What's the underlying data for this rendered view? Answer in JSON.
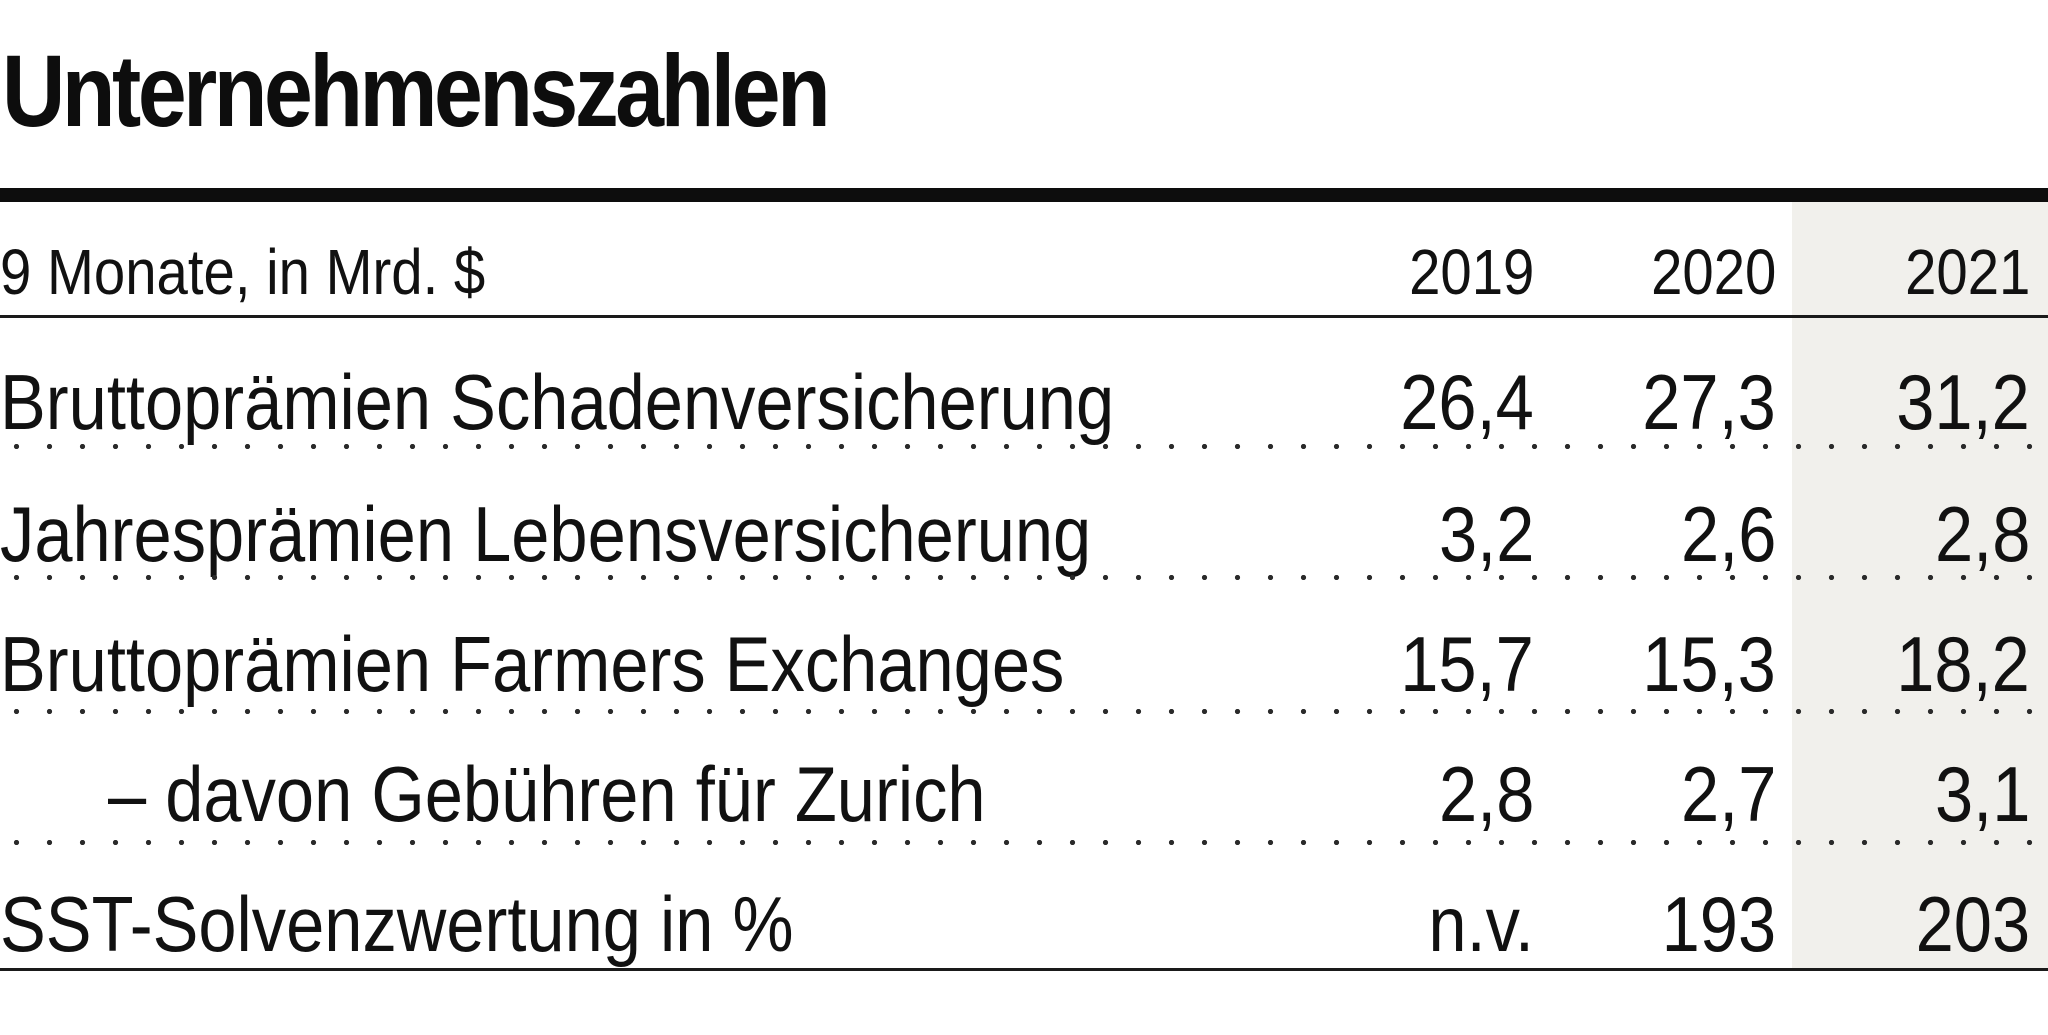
{
  "title": "Unternehmenszahlen",
  "header": {
    "unit_label": "9 Monate, in Mrd. $",
    "years": [
      "2019",
      "2020",
      "2021"
    ]
  },
  "rows": [
    {
      "label": "Bruttoprämien Schadenversicherung",
      "values": [
        "26,4",
        "27,3",
        "31,2"
      ]
    },
    {
      "label": "Jahresprämien Lebensversicherung",
      "values": [
        "3,2",
        "2,6",
        "2,8"
      ]
    },
    {
      "label": "Bruttoprämien Farmers Exchanges",
      "values": [
        "15,7",
        "15,3",
        "18,2"
      ]
    },
    {
      "label": "– davon Gebühren für Zurich",
      "values": [
        "2,8",
        "2,7",
        "3,1"
      ]
    },
    {
      "label": "SST-Solvenzwertung in %",
      "values": [
        "n.v.",
        "193",
        "203"
      ]
    }
  ],
  "colors": {
    "text": "#111111",
    "rule": "#0d0d0d",
    "highlight_column": "#f1f0ec"
  }
}
